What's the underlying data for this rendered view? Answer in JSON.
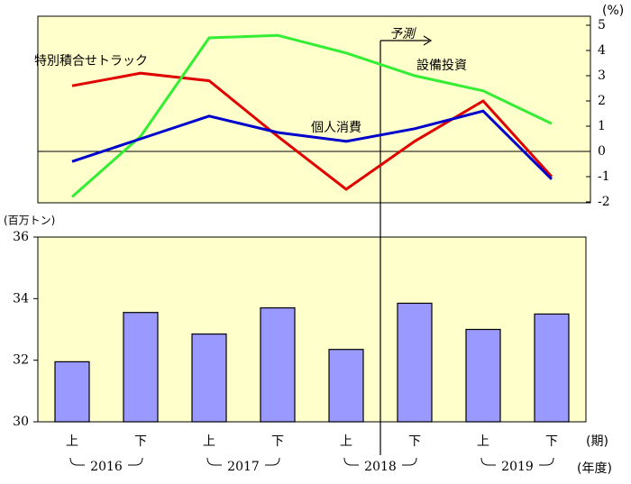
{
  "chart_data": [
    {
      "type": "line",
      "categories": [
        "上",
        "下",
        "上",
        "下",
        "上",
        "下",
        "上",
        "下"
      ],
      "y_unit": "(%)",
      "ylim": [
        -2,
        5
      ],
      "yticks": [
        -2,
        -1,
        0,
        1,
        2,
        3,
        4,
        5
      ],
      "axis_side": "right",
      "annotation": "予測",
      "series": [
        {
          "name": "特別積合せトラック",
          "color": "#e00000",
          "values": [
            2.6,
            3.1,
            2.8,
            0.6,
            -1.5,
            0.4,
            2.0,
            -1.0
          ]
        },
        {
          "name": "設備投資",
          "color": "#33ee33",
          "values": [
            -1.8,
            0.6,
            4.5,
            4.6,
            3.9,
            3.0,
            2.4,
            1.1
          ]
        },
        {
          "name": "個人消費",
          "color": "#0000cc",
          "values": [
            -0.4,
            0.5,
            1.4,
            0.75,
            0.4,
            0.9,
            1.6,
            -1.1
          ]
        }
      ]
    },
    {
      "type": "bar",
      "categories": [
        "上",
        "下",
        "上",
        "下",
        "上",
        "下",
        "上",
        "下"
      ],
      "groups": [
        "2016",
        "2017",
        "2018",
        "2019"
      ],
      "x_unit": "(期)",
      "group_unit": "(年度)",
      "y_unit": "(百万トン)",
      "ylim": [
        30,
        36
      ],
      "yticks": [
        30,
        32,
        34,
        36
      ],
      "color": "#9999ff",
      "values": [
        31.95,
        33.55,
        32.85,
        33.7,
        32.35,
        33.85,
        33.0,
        33.5
      ]
    }
  ]
}
